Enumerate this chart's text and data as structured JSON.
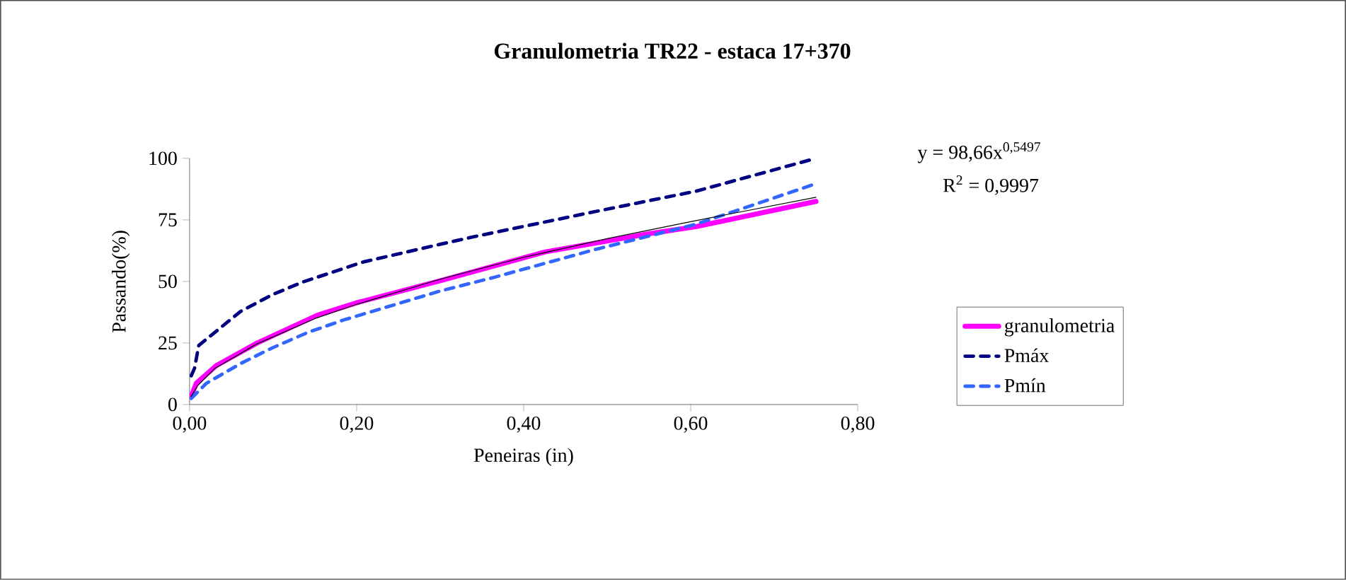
{
  "chart_data": {
    "type": "line",
    "title": "Granulometria TR22 - estaca 17+370",
    "xlabel": "Peneiras (in)",
    "ylabel": "Passando(%)",
    "xlim": [
      0,
      0.8
    ],
    "xticks": [
      {
        "value": 0,
        "label": "0,00"
      },
      {
        "value": 0.2,
        "label": "0,20"
      },
      {
        "value": 0.4,
        "label": "0,40"
      },
      {
        "value": 0.6,
        "label": "0,60"
      },
      {
        "value": 0.8,
        "label": "0,80"
      }
    ],
    "ylim": [
      0,
      100
    ],
    "yticks": [
      0,
      25,
      50,
      75,
      100
    ],
    "grid": false,
    "legend": "right",
    "annotations": [
      "y = 98,66x$^{0,5497}$",
      "R$^{2}$ = 0,9997"
    ],
    "series": [
      {
        "name": "granulometria",
        "color": "#ff00ff",
        "line_style": "solid",
        "x": [
          0.002,
          0.008,
          0.032,
          0.081,
          0.153,
          0.202,
          0.305,
          0.426,
          0.547,
          0.607,
          0.75
        ],
        "values": [
          3.5,
          8.6,
          15.8,
          25,
          36.3,
          41.5,
          50.7,
          62,
          69.2,
          72.3,
          82.5
        ]
      },
      {
        "name": "Pmáx",
        "color": "#000080",
        "line_style": "dashed",
        "x": [
          0.002,
          0.006,
          0.011,
          0.061,
          0.099,
          0.135,
          0.208,
          0.299,
          0.341,
          0.486,
          0.607,
          0.75
        ],
        "values": [
          11.7,
          14.8,
          24,
          37.8,
          44.6,
          49.7,
          57.9,
          65,
          68.2,
          78.4,
          86.7,
          100
        ]
      },
      {
        "name": "Pmín",
        "color": "#3366ff",
        "line_style": "dashed",
        "x": [
          0.002,
          0.02,
          0.062,
          0.099,
          0.141,
          0.184,
          0.299,
          0.365,
          0.486,
          0.607,
          0.75
        ],
        "values": [
          2.5,
          8.6,
          16.8,
          23,
          29.2,
          34.3,
          46,
          51.7,
          63,
          73.3,
          89.7
        ]
      },
      {
        "type": "line",
        "color": "#000000",
        "line_style": "solid",
        "x": [
          0.002,
          0.01,
          0.03,
          0.08,
          0.15,
          0.2,
          0.3,
          0.4,
          0.5,
          0.6,
          0.75
        ],
        "values": [
          3.3,
          7.8,
          14.6,
          24.5,
          34.9,
          40.7,
          50.9,
          59.8,
          67.4,
          74.3,
          84.2
        ]
      }
    ]
  }
}
